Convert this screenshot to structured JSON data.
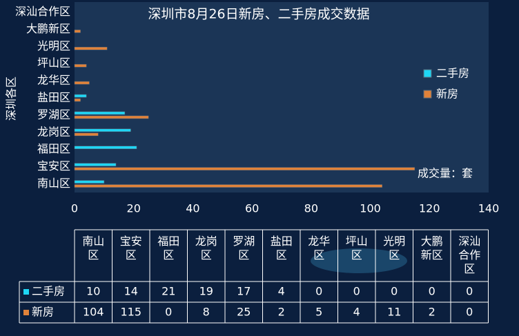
{
  "chart_data": {
    "type": "bar",
    "orientation": "horizontal",
    "title": "深圳市8月26日新房、二手房成交数据",
    "y_label": "深圳各区",
    "unit_label": "成交量：套",
    "categories": [
      "南山区",
      "宝安区",
      "福田区",
      "龙岗区",
      "罗湖区",
      "盐田区",
      "龙华区",
      "坪山区",
      "光明区",
      "大鹏新区",
      "深汕合作区"
    ],
    "series": [
      {
        "name": "二手房",
        "color": "#1ed6f5",
        "values": [
          10,
          14,
          21,
          19,
          17,
          4,
          0,
          0,
          0,
          0,
          0
        ]
      },
      {
        "name": "新房",
        "color": "#e0823a",
        "values": [
          104,
          115,
          0,
          8,
          25,
          2,
          5,
          4,
          11,
          2,
          0
        ]
      }
    ],
    "xlim": [
      0,
      140
    ],
    "xticks": [
      0,
      20,
      40,
      60,
      80,
      100,
      120,
      140
    ],
    "legend": "right"
  }
}
